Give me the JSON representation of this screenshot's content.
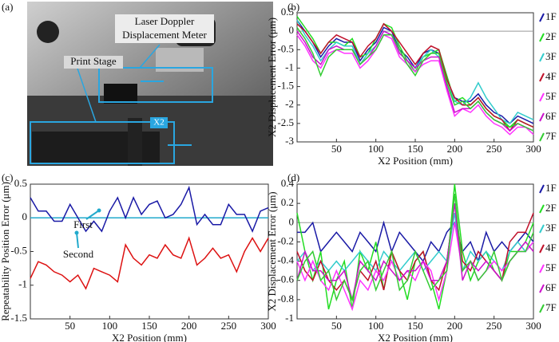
{
  "photo": {
    "panel": "(a)",
    "meter_label": [
      "Laser Doppler",
      "Displacement Meter"
    ],
    "stage_label": "Print Stage",
    "axis_label": "X2"
  },
  "chart_data": [
    {
      "type": "line",
      "panel": "(b)",
      "xlabel": "X2 Position (mm)",
      "ylabel": "X2 Displacement Error (μm)",
      "xlim": [
        0,
        300
      ],
      "ylim": [
        -3,
        0.5
      ],
      "xticks": [
        50,
        100,
        150,
        200,
        250,
        300
      ],
      "yticks": [
        -3,
        -2.5,
        -2,
        -1.5,
        -1,
        -0.5,
        0,
        0.5
      ],
      "legend": "right",
      "reference_line": {
        "value": 0,
        "color": "#999999"
      },
      "x": [
        0,
        10,
        20,
        30,
        40,
        50,
        60,
        70,
        80,
        90,
        100,
        110,
        120,
        130,
        140,
        150,
        160,
        170,
        180,
        190,
        200,
        210,
        220,
        230,
        240,
        250,
        260,
        270,
        280,
        290,
        300
      ],
      "series": [
        {
          "name": "1F",
          "color": "#1a1aa6",
          "values": [
            0.3,
            0,
            -0.3,
            -0.7,
            -0.4,
            -0.2,
            -0.3,
            -0.3,
            -0.8,
            -0.5,
            -0.3,
            0.1,
            0,
            -0.5,
            -0.7,
            -1,
            -0.6,
            -0.5,
            -0.6,
            -1.3,
            -1.8,
            -1.9,
            -1.9,
            -1.7,
            -2,
            -2.2,
            -2.3,
            -2.5,
            -2.3,
            -2.4,
            -2.5
          ]
        },
        {
          "name": "2F",
          "color": "#22dd22",
          "values": [
            0.4,
            0.1,
            -0.2,
            -0.6,
            -0.3,
            -0.3,
            -0.4,
            -0.2,
            -0.7,
            -0.6,
            -0.2,
            0.2,
            0.1,
            -0.4,
            -0.8,
            -1.1,
            -0.7,
            -0.6,
            -0.5,
            -1.2,
            -1.9,
            -1.8,
            -2,
            -1.8,
            -2.1,
            -2.3,
            -2.4,
            -2.6,
            -2.4,
            -2.5,
            -2.6
          ]
        },
        {
          "name": "3F",
          "color": "#33cccc",
          "values": [
            0.3,
            -0.1,
            -0.4,
            -0.8,
            -0.5,
            -0.3,
            -0.4,
            -0.4,
            -0.9,
            -0.6,
            -0.4,
            0,
            -0.1,
            -0.6,
            -0.8,
            -1,
            -0.7,
            -0.5,
            -0.7,
            -1.4,
            -1.9,
            -2,
            -1.8,
            -1.4,
            -1.8,
            -2.1,
            -2.4,
            -2.5,
            -2.2,
            -2.3,
            -2.4
          ]
        },
        {
          "name": "4F",
          "color": "#c0102a",
          "values": [
            0.2,
            0,
            -0.3,
            -0.6,
            -0.3,
            -0.1,
            -0.2,
            -0.3,
            -0.7,
            -0.4,
            -0.2,
            0.2,
            0,
            -0.3,
            -0.6,
            -0.9,
            -0.6,
            -0.4,
            -0.5,
            -1.3,
            -1.8,
            -2,
            -2,
            -1.8,
            -2.1,
            -2.3,
            -2.4,
            -2.7,
            -2.4,
            -2.5,
            -2.6
          ]
        },
        {
          "name": "5F",
          "color": "#ff33ff",
          "values": [
            -0.1,
            -0.4,
            -0.8,
            -1,
            -0.6,
            -0.5,
            -0.6,
            -0.6,
            -1,
            -0.8,
            -0.5,
            -0.1,
            -0.2,
            -0.7,
            -0.9,
            -1.1,
            -0.9,
            -0.8,
            -0.8,
            -1.6,
            -2.3,
            -2.1,
            -2.2,
            -2,
            -2.3,
            -2.5,
            -2.6,
            -2.8,
            -2.6,
            -2.6,
            -2.8
          ]
        },
        {
          "name": "6F",
          "color": "#cc11cc",
          "values": [
            0,
            -0.3,
            -0.7,
            -0.9,
            -0.5,
            -0.4,
            -0.5,
            -0.5,
            -0.9,
            -0.7,
            -0.4,
            0,
            -0.1,
            -0.6,
            -0.8,
            -1,
            -0.8,
            -0.7,
            -0.7,
            -1.5,
            -2.2,
            -2.1,
            -2.1,
            -1.9,
            -2.2,
            -2.4,
            -2.5,
            -2.7,
            -2.5,
            -2.6,
            -2.7
          ]
        },
        {
          "name": "7F",
          "color": "#33cc33",
          "values": [
            0.1,
            -0.2,
            -0.6,
            -1.2,
            -0.7,
            -0.5,
            -0.5,
            -0.5,
            -0.9,
            -0.7,
            -0.5,
            -0.1,
            -0.1,
            -0.5,
            -0.9,
            -1.2,
            -0.8,
            -0.6,
            -0.6,
            -1.4,
            -2,
            -1.9,
            -2.1,
            -1.9,
            -2.2,
            -2.4,
            -2.5,
            -2.6,
            -2.5,
            -2.6,
            -2.7
          ]
        }
      ]
    },
    {
      "type": "line",
      "panel": "(c)",
      "xlabel": "X2 Position (mm)",
      "ylabel": "Repeatability Position Error (μm)",
      "xlim": [
        0,
        300
      ],
      "ylim": [
        -1.5,
        0.5
      ],
      "xticks": [
        50,
        100,
        150,
        200,
        250,
        300
      ],
      "yticks": [
        -1.5,
        -1,
        -0.5,
        0,
        0.5
      ],
      "legend": "annotations",
      "reference_line": {
        "value": 0,
        "color": "#22aacc"
      },
      "x": [
        0,
        10,
        20,
        30,
        40,
        50,
        60,
        70,
        80,
        90,
        100,
        110,
        120,
        130,
        140,
        150,
        160,
        170,
        180,
        190,
        200,
        210,
        220,
        230,
        240,
        250,
        260,
        270,
        280,
        290,
        300
      ],
      "series": [
        {
          "name": "First",
          "color": "#1a1aa6",
          "values": [
            0.3,
            0.1,
            0.1,
            -0.05,
            -0.05,
            0.2,
            0,
            -0.2,
            -0.05,
            -0.2,
            0.1,
            0.3,
            0,
            0.3,
            0.05,
            0.2,
            0.25,
            0,
            0.05,
            0.2,
            0.45,
            -0.1,
            0.05,
            -0.1,
            -0.1,
            0.2,
            0.05,
            0.05,
            -0.2,
            0.1,
            0.15
          ]
        },
        {
          "name": "Second",
          "color": "#dd1111",
          "values": [
            -0.9,
            -0.65,
            -0.7,
            -0.8,
            -0.85,
            -0.95,
            -0.85,
            -1.05,
            -0.75,
            -0.8,
            -0.85,
            -0.95,
            -0.4,
            -0.6,
            -0.7,
            -0.55,
            -0.6,
            -0.4,
            -0.55,
            -0.6,
            -0.3,
            -0.7,
            -0.6,
            -0.45,
            -0.6,
            -0.55,
            -0.8,
            -0.5,
            -0.3,
            -0.5,
            -0.3
          ]
        }
      ]
    },
    {
      "type": "line",
      "panel": "(d)",
      "xlabel": "X2 Position (mm)",
      "ylabel": "X2 Displacement Error (μm)",
      "xlim": [
        0,
        300
      ],
      "ylim": [
        -1,
        0.4
      ],
      "xticks": [
        50,
        100,
        150,
        200,
        250,
        300
      ],
      "yticks": [
        -1,
        -0.8,
        -0.6,
        -0.4,
        -0.2,
        0,
        0.2,
        0.4
      ],
      "legend": "right",
      "reference_line": {
        "value": 0,
        "color": "#999999"
      },
      "x": [
        0,
        10,
        20,
        30,
        40,
        50,
        60,
        70,
        80,
        90,
        100,
        110,
        120,
        130,
        140,
        150,
        160,
        170,
        180,
        190,
        200,
        210,
        220,
        230,
        240,
        250,
        260,
        270,
        280,
        290,
        300
      ],
      "series": [
        {
          "name": "1F",
          "color": "#1a1aa6",
          "values": [
            -0.1,
            -0.1,
            0,
            -0.3,
            -0.2,
            -0.1,
            -0.2,
            -0.3,
            -0.1,
            -0.2,
            -0.3,
            0,
            -0.3,
            -0.1,
            -0.2,
            -0.3,
            -0.4,
            -0.2,
            -0.3,
            -0.1,
            0,
            -0.3,
            -0.2,
            -0.4,
            -0.1,
            -0.3,
            -0.2,
            -0.3,
            -0.2,
            -0.1,
            -0.2
          ]
        },
        {
          "name": "2F",
          "color": "#22dd22",
          "values": [
            0.1,
            -0.3,
            -0.6,
            -0.3,
            -0.9,
            -0.6,
            -0.4,
            -0.9,
            -0.3,
            -0.5,
            -0.2,
            -0.7,
            -0.3,
            -0.5,
            -0.8,
            -0.4,
            -0.3,
            -0.6,
            -0.9,
            -0.5,
            0.4,
            -0.3,
            -0.6,
            -0.4,
            -0.3,
            -0.5,
            -0.6,
            -0.3,
            -0.3,
            -0.2,
            0
          ]
        },
        {
          "name": "3F",
          "color": "#33cccc",
          "values": [
            -0.4,
            -0.3,
            -0.5,
            -0.4,
            -0.5,
            -0.4,
            -0.5,
            -0.4,
            -0.3,
            -0.4,
            -0.5,
            -0.3,
            -0.4,
            -0.5,
            -0.4,
            -0.3,
            -0.5,
            -0.4,
            -0.3,
            -0.4,
            0.1,
            -0.5,
            -0.3,
            -0.4,
            -0.3,
            -0.4,
            -0.5,
            -0.3,
            -0.2,
            -0.3,
            -0.2
          ]
        },
        {
          "name": "4F",
          "color": "#c0102a",
          "values": [
            -0.3,
            -0.5,
            -0.6,
            -0.4,
            -0.6,
            -0.7,
            -0.6,
            -0.8,
            -0.5,
            -0.6,
            -0.4,
            -0.7,
            -0.3,
            -0.5,
            -0.6,
            -0.4,
            -0.3,
            -0.6,
            -0.7,
            -0.4,
            0.2,
            -0.4,
            -0.5,
            -0.3,
            -0.4,
            -0.5,
            -0.6,
            -0.2,
            -0.1,
            -0.1,
            0.1
          ]
        },
        {
          "name": "5F",
          "color": "#ff33ff",
          "values": [
            -0.4,
            -0.6,
            -0.4,
            -0.6,
            -0.7,
            -0.5,
            -0.7,
            -0.9,
            -0.6,
            -0.7,
            -0.5,
            -0.6,
            -0.4,
            -0.6,
            -0.5,
            -0.6,
            -0.4,
            -0.5,
            -0.8,
            -0.5,
            0,
            -0.5,
            -0.4,
            -0.6,
            -0.5,
            -0.4,
            -0.5,
            -0.4,
            -0.3,
            -0.3,
            -0.2
          ]
        },
        {
          "name": "6F",
          "color": "#cc11cc",
          "values": [
            -0.6,
            -0.3,
            -0.5,
            -0.5,
            -0.6,
            -0.6,
            -0.5,
            -0.8,
            -0.4,
            -0.5,
            -0.6,
            -0.4,
            -0.5,
            -0.6,
            -0.5,
            -0.5,
            -0.4,
            -0.6,
            -0.6,
            -0.4,
            0.2,
            -0.6,
            -0.4,
            -0.5,
            -0.4,
            -0.5,
            -0.6,
            -0.4,
            -0.3,
            -0.2,
            -0.3
          ]
        },
        {
          "name": "7F",
          "color": "#33cc33",
          "values": [
            -0.6,
            -0.4,
            -0.3,
            -0.6,
            -0.5,
            -0.8,
            -0.6,
            -0.8,
            -0.5,
            -0.4,
            -0.7,
            -0.5,
            -0.3,
            -0.7,
            -0.6,
            -0.3,
            -0.5,
            -0.7,
            -0.6,
            -0.5,
            0.3,
            -0.5,
            -0.4,
            -0.6,
            -0.5,
            -0.3,
            -0.6,
            -0.4,
            -0.3,
            -0.3,
            -0.1
          ]
        }
      ]
    }
  ]
}
